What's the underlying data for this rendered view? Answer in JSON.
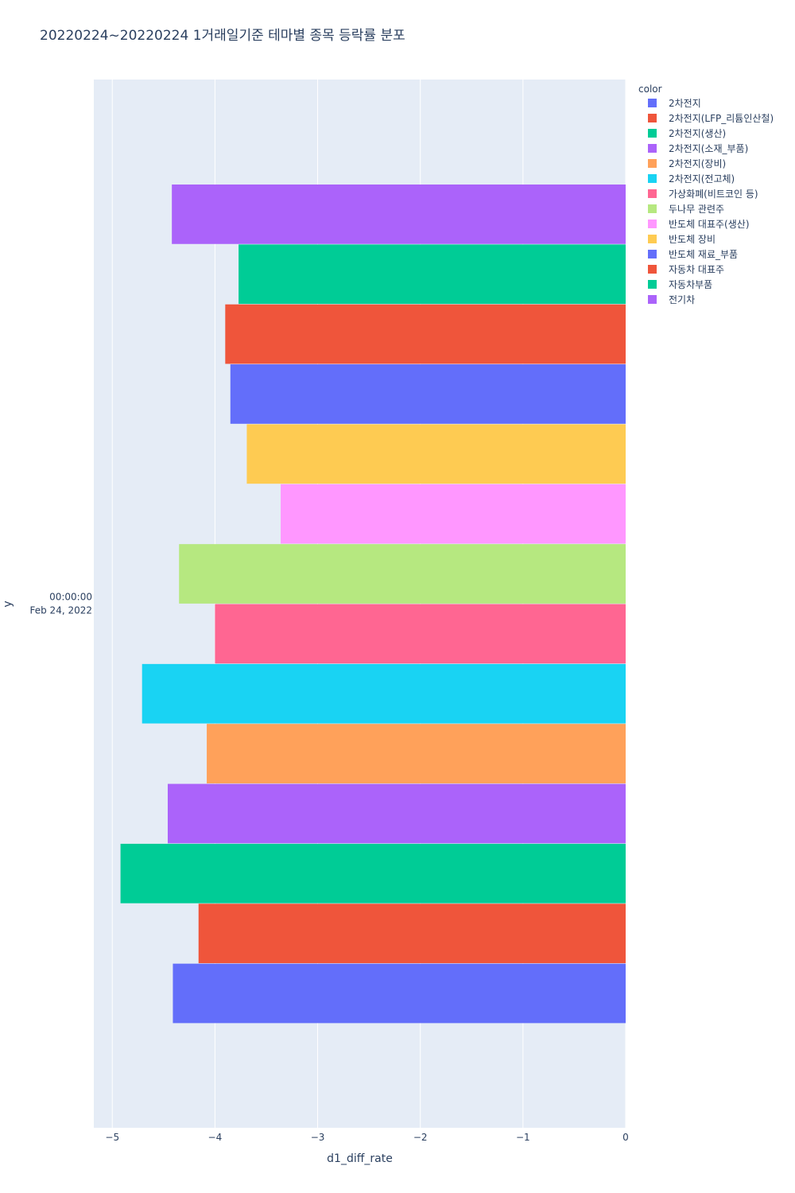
{
  "chart_data": {
    "type": "bar",
    "orientation": "horizontal",
    "barmode": "group",
    "title": "20220224~20220224 1거래일기준 테마별 종목 등락률 분포",
    "xlabel": "d1_diff_rate",
    "ylabel": "y",
    "xlim": [
      -5.18,
      0
    ],
    "x_ticks": [
      "−5",
      "−4",
      "−3",
      "−2",
      "−1",
      "0"
    ],
    "x_tick_values": [
      -5,
      -4,
      -3,
      -2,
      -1,
      0
    ],
    "y_category": [
      "00:00:00",
      "Feb 24, 2022"
    ],
    "grid": true,
    "legend_title": "color",
    "legend_position": "top-right",
    "series": [
      {
        "name": "2차전지",
        "value": -4.41,
        "color": "#636efa"
      },
      {
        "name": "2차전지(LFP_리튬인산철)",
        "value": -4.16,
        "color": "#EF553B"
      },
      {
        "name": "2차전지(생산)",
        "value": -4.92,
        "color": "#00cc96"
      },
      {
        "name": "2차전지(소재_부품)",
        "value": -4.46,
        "color": "#ab63fa"
      },
      {
        "name": "2차전지(장비)",
        "value": -4.08,
        "color": "#FFA15A"
      },
      {
        "name": "2차전지(전고체)",
        "value": -4.71,
        "color": "#19d3f3"
      },
      {
        "name": "가상화폐(비트코인 등)",
        "value": -4.0,
        "color": "#FF6692"
      },
      {
        "name": "두나무 관련주",
        "value": -4.35,
        "color": "#B6E880"
      },
      {
        "name": "반도체 대표주(생산)",
        "value": -3.36,
        "color": "#FF97FF"
      },
      {
        "name": "반도체 장비",
        "value": -3.69,
        "color": "#FECB52"
      },
      {
        "name": "반도체 재료_부품",
        "value": -3.85,
        "color": "#636efa"
      },
      {
        "name": "자동차 대표주",
        "value": -3.9,
        "color": "#EF553B"
      },
      {
        "name": "자동차부품",
        "value": -3.77,
        "color": "#00cc96"
      },
      {
        "name": "전기차",
        "value": -4.42,
        "color": "#ab63fa"
      }
    ]
  }
}
